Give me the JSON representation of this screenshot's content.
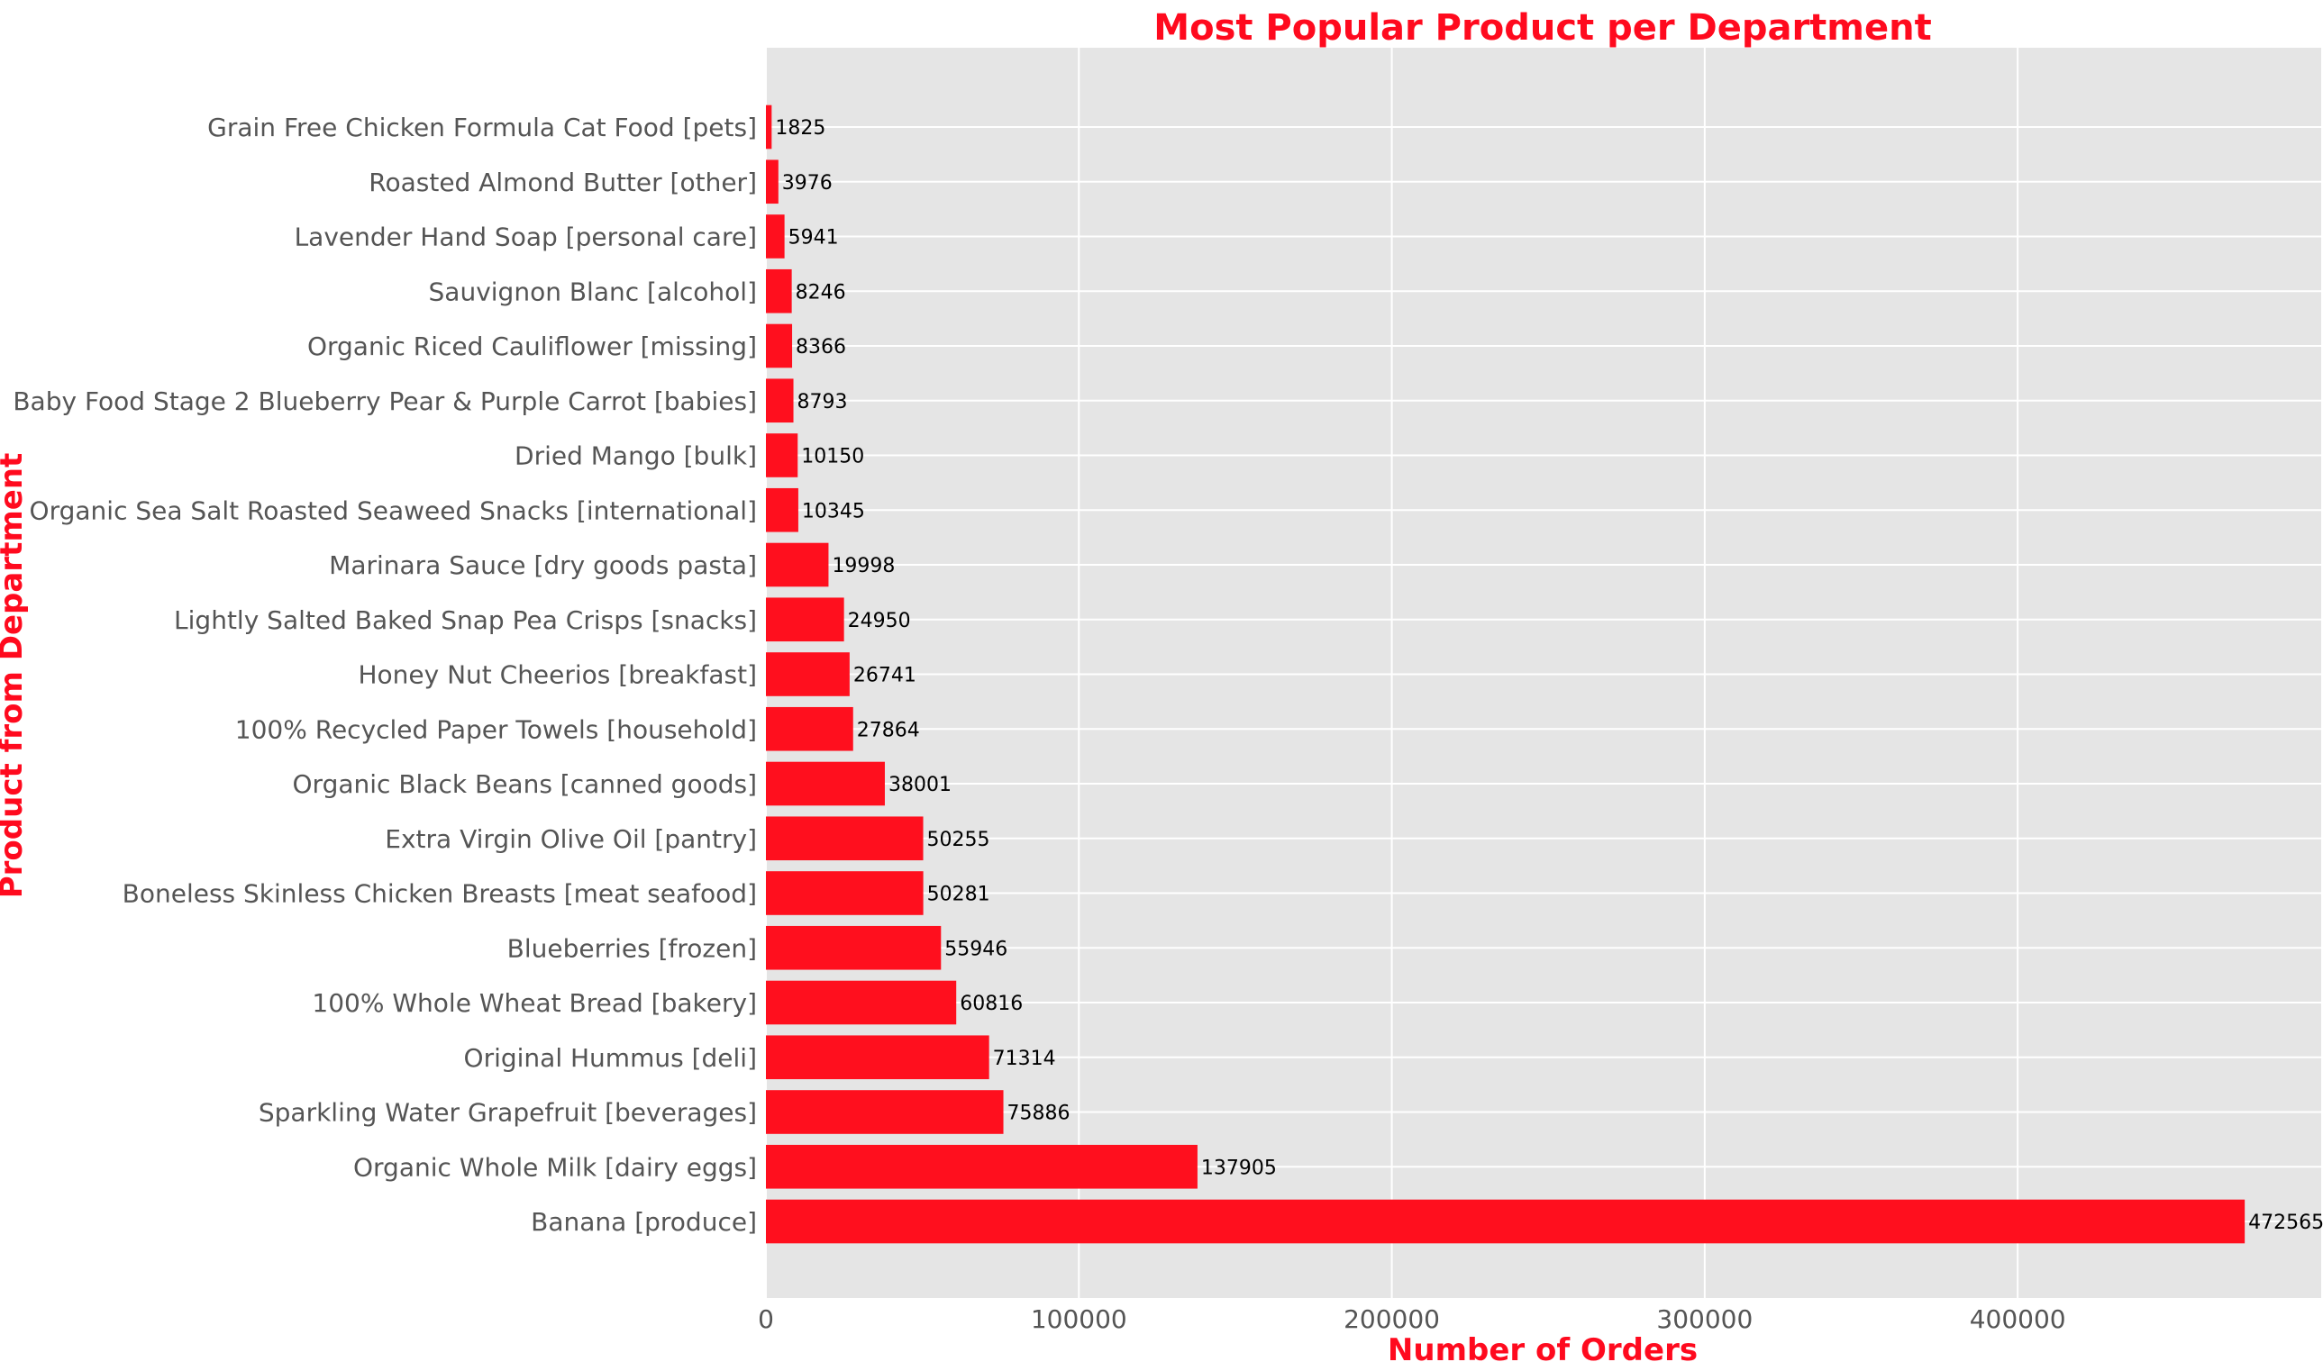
{
  "chart_data": {
    "type": "bar",
    "orientation": "horizontal",
    "title": "Most Popular Product per Department",
    "xlabel": "Number of Orders",
    "ylabel": "Product from Department",
    "xlim": [
      0,
      497000
    ],
    "xticks": [
      0,
      100000,
      200000,
      300000,
      400000
    ],
    "grid": true,
    "bar_color": "#ff0f1e",
    "plot_background": "#e5e5e5",
    "grid_color": "#ffffff",
    "accent_color": "#ff0a1e",
    "categories": [
      "Banana [produce]",
      "Organic Whole Milk [dairy eggs]",
      "Sparkling Water Grapefruit [beverages]",
      "Original Hummus [deli]",
      "100% Whole Wheat Bread [bakery]",
      "Blueberries [frozen]",
      "Boneless Skinless Chicken Breasts [meat seafood]",
      "Extra Virgin Olive Oil [pantry]",
      "Organic Black Beans [canned goods]",
      "100% Recycled Paper Towels [household]",
      "Honey Nut Cheerios [breakfast]",
      "Lightly Salted Baked Snap Pea Crisps [snacks]",
      "Marinara Sauce [dry goods pasta]",
      "Organic Sea Salt Roasted Seaweed Snacks [international]",
      "Dried Mango [bulk]",
      "Baby Food Stage 2 Blueberry Pear & Purple Carrot [babies]",
      "Organic Riced Cauliflower [missing]",
      "Sauvignon Blanc [alcohol]",
      "Lavender Hand Soap [personal care]",
      "Roasted Almond Butter [other]",
      "Grain Free Chicken Formula Cat Food [pets]"
    ],
    "values": [
      472565,
      137905,
      75886,
      71314,
      60816,
      55946,
      50281,
      50255,
      38001,
      27864,
      26741,
      24950,
      19998,
      10345,
      10150,
      8793,
      8366,
      8246,
      5941,
      3976,
      1825
    ]
  }
}
